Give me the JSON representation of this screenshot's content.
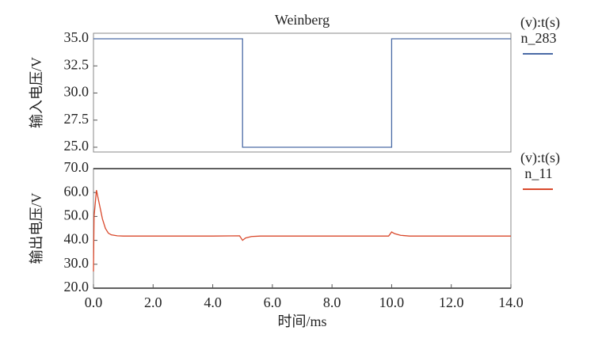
{
  "chart_data": [
    {
      "type": "line",
      "title": "Weinberg",
      "ylabel": "输入电压/V",
      "legend_title": "(v):t(s)",
      "x": [
        0,
        5,
        5,
        10,
        10,
        14
      ],
      "series": [
        {
          "name": "n_283",
          "color": "#4a6aa5",
          "values": [
            35,
            35,
            25,
            25,
            35,
            35
          ]
        }
      ],
      "xlim": [
        0,
        14
      ],
      "ylim": [
        24.56,
        35.51
      ],
      "yticks": [
        {
          "value": 25,
          "label": "25.0"
        },
        {
          "value": 27.5,
          "label": "27.5"
        },
        {
          "value": 30,
          "label": "30.0"
        },
        {
          "value": 32.5,
          "label": "32.5"
        },
        {
          "value": 35,
          "label": "35.0"
        }
      ]
    },
    {
      "type": "line",
      "ylabel": "输出电压/V",
      "xlabel": "时间/ms",
      "legend_title": "(v):t(s)",
      "x": [
        0,
        0.02,
        0.1,
        0.2,
        0.3,
        0.4,
        0.5,
        0.6,
        0.8,
        1,
        2,
        3,
        4,
        4.9,
        5.0,
        5.1,
        5.3,
        5.6,
        6,
        8,
        9.9,
        10.0,
        10.1,
        10.3,
        10.6,
        12,
        14
      ],
      "series": [
        {
          "name": "n_11",
          "color": "#d9482b",
          "values": [
            27,
            50,
            61,
            55,
            49,
            45,
            43,
            42.3,
            41.9,
            41.8,
            41.8,
            41.8,
            41.8,
            41.9,
            40,
            41,
            41.6,
            41.8,
            41.8,
            41.8,
            41.8,
            43.5,
            42.8,
            42.1,
            41.8,
            41.8,
            41.8
          ]
        }
      ],
      "xlim": [
        0,
        14
      ],
      "ylim": [
        20,
        70
      ],
      "xticks": [
        {
          "value": 0,
          "label": "0.0"
        },
        {
          "value": 2,
          "label": "2.0"
        },
        {
          "value": 4,
          "label": "4.0"
        },
        {
          "value": 6,
          "label": "6.0"
        },
        {
          "value": 8,
          "label": "8.0"
        },
        {
          "value": 10,
          "label": "10.0"
        },
        {
          "value": 12,
          "label": "12.0"
        },
        {
          "value": 14,
          "label": "14.0"
        }
      ],
      "yticks": [
        {
          "value": 20,
          "label": "20.0"
        },
        {
          "value": 30,
          "label": "30.0"
        },
        {
          "value": 40,
          "label": "40.0"
        },
        {
          "value": 50,
          "label": "50.0"
        },
        {
          "value": 60,
          "label": "60.0"
        },
        {
          "value": 70,
          "label": "70.0"
        }
      ]
    }
  ]
}
